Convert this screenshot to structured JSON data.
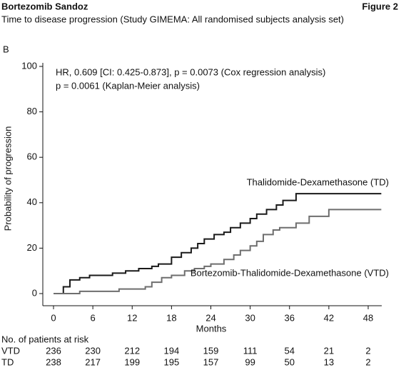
{
  "header": {
    "title": "Bortezomib Sandoz",
    "figure": "Figure 2",
    "subtitle": "Time to disease progression (Study GIMEMA: All randomised subjects analysis set)"
  },
  "chart_data": {
    "type": "step",
    "panel": "B",
    "annotations": [
      "HR, 0.609 [CI: 0.425-0.873], p = 0.0073 (Cox regression analysis)",
      "p = 0.0061 (Kaplan-Meier analysis)"
    ],
    "xlabel": "Months",
    "ylabel": "Probability of progression",
    "xlim": [
      0,
      48
    ],
    "xticks": [
      0,
      6,
      12,
      18,
      24,
      30,
      36,
      42,
      48
    ],
    "ylim": [
      0,
      100
    ],
    "yticks": [
      0,
      20,
      40,
      60,
      80,
      100
    ],
    "series": [
      {
        "name": "Thalidomide-Dexamethasone (TD)",
        "color": "#1a1a1a",
        "x": [
          0,
          1,
          1.5,
          2.5,
          4,
          5.5,
          9,
          11,
          13,
          15,
          16,
          18,
          19.5,
          21,
          22,
          23,
          24.5,
          26,
          27,
          28.5,
          30,
          31,
          32.5,
          34,
          35,
          37,
          50
        ],
        "values": [
          0,
          0,
          3,
          6,
          7,
          8,
          9,
          10,
          11,
          12,
          13,
          16,
          18,
          20,
          22,
          24,
          26,
          27,
          29,
          31,
          33,
          35,
          37,
          39,
          41,
          44,
          44
        ]
      },
      {
        "name": "Bortezomib-Thalidomide-Dexamethasone (VTD)",
        "color": "#6e6e6e",
        "x": [
          0,
          4,
          10,
          14,
          15,
          16.5,
          18,
          20,
          21.5,
          23,
          24,
          26,
          27.5,
          28.5,
          30,
          31,
          32,
          33.5,
          34.5,
          37,
          39,
          42,
          50
        ],
        "values": [
          0,
          1,
          2,
          3,
          5,
          7,
          8,
          10,
          11,
          12,
          13,
          15,
          17,
          19,
          21,
          23,
          26,
          28,
          29,
          31,
          34,
          37,
          37
        ]
      }
    ]
  },
  "risk_table": {
    "title": "No. of patients at risk",
    "rows": [
      {
        "label": "VTD",
        "values": [
          236,
          230,
          212,
          194,
          159,
          111,
          54,
          21,
          2
        ]
      },
      {
        "label": "TD",
        "values": [
          238,
          217,
          199,
          195,
          157,
          99,
          50,
          13,
          2
        ]
      }
    ]
  }
}
